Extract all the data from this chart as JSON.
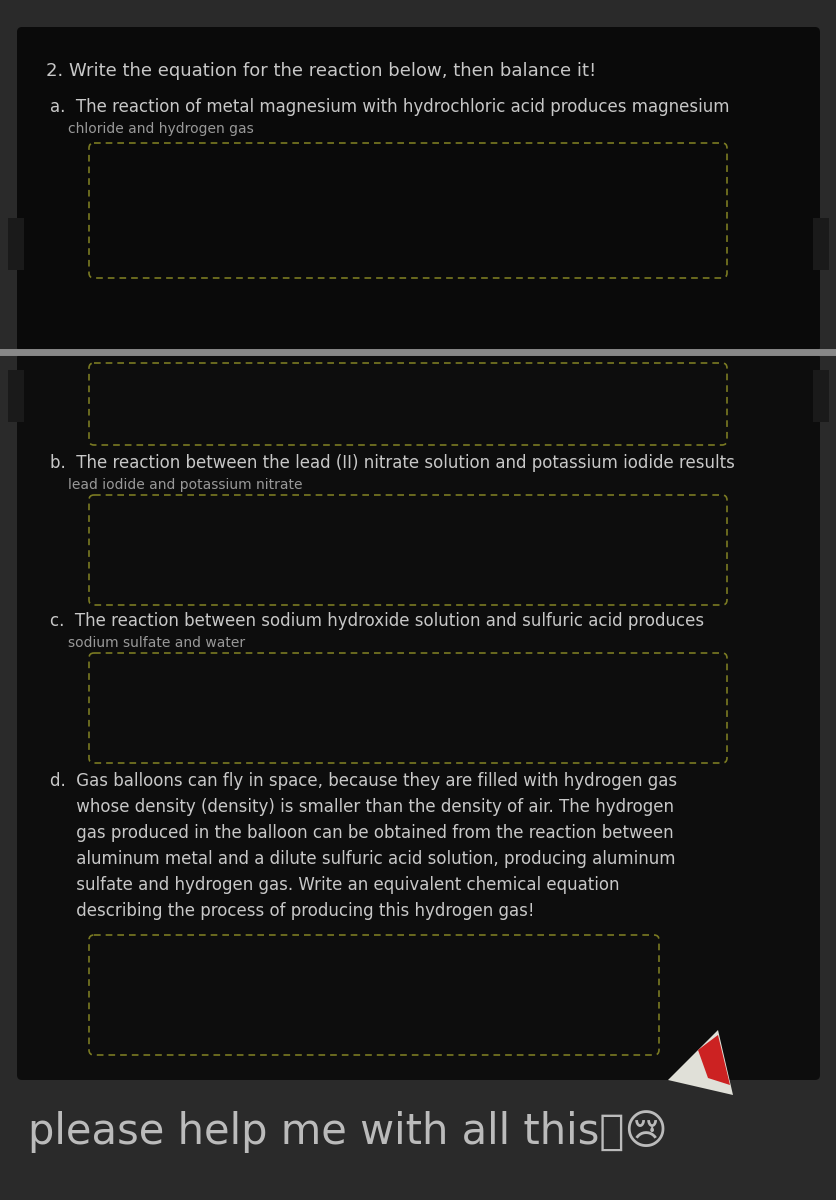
{
  "bg_color": "#2a2a2a",
  "card1_bg": "#0a0a0a",
  "card2_bg": "#0d0d0d",
  "footer_bg": "#2a2a2a",
  "text_color": "#c8c8c8",
  "text_color_small": "#999999",
  "dashed_color": "#7a7a22",
  "sep_color": "#888888",
  "side_tab_color": "#1a1a1a",
  "title": "2. Write the equation for the reaction below, then balance it!",
  "a_line1": "a.  The reaction of metal magnesium with hydrochloric acid produces magnesium",
  "a_line2": "    chloride and hydrogen gas",
  "b_line1": "b.  The reaction between the lead (II) nitrate solution and potassium iodide results",
  "b_line2": "    lead iodide and potassium nitrate",
  "c_line1": "c.  The reaction between sodium hydroxide solution and sulfuric acid produces",
  "c_line2": "    sodium sulfate and water",
  "d_lines": [
    "d.  Gas balloons can fly in space, because they are filled with hydrogen gas",
    "     whose density (density) is smaller than the density of air. The hydrogen",
    "     gas produced in the balloon can be obtained from the reaction between",
    "     aluminum metal and a dilute sulfuric acid solution, producing aluminum",
    "     sulfate and hydrogen gas. Write an equivalent chemical equation",
    "     describing the process of producing this hydrogen gas!"
  ],
  "footer": "please help me with all this🙏😢",
  "footer_color": "#bbbbbb"
}
